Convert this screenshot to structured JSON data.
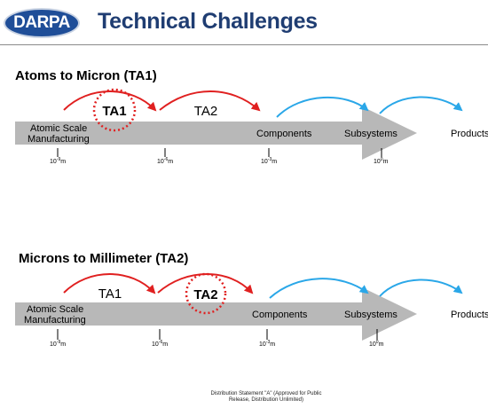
{
  "header": {
    "logo_text": "DARPA",
    "title": "Technical Challenges"
  },
  "colors": {
    "red_arrow": "#e02020",
    "blue_arrow": "#2aa7e8",
    "gray_arrow": "#b8b8b8",
    "title_blue": "#1f3d72"
  },
  "sections": [
    {
      "title": "Atoms to Micron (TA1)",
      "start_label": [
        "Atomic Scale",
        "Manufacturing"
      ],
      "stage_labels": [
        "TA1",
        "TA2"
      ],
      "highlighted": "TA1",
      "milestones": [
        "Components",
        "Subsystems",
        "Products"
      ],
      "ticks": [
        {
          "base": "10",
          "exp": "-9",
          "unit": "m"
        },
        {
          "base": "10",
          "exp": "-6",
          "unit": "m"
        },
        {
          "base": "10",
          "exp": "-3",
          "unit": "m"
        },
        {
          "base": "10",
          "exp": "0",
          "unit": "m"
        }
      ]
    },
    {
      "title": "Microns to Millimeter (TA2)",
      "start_label": [
        "Atomic Scale",
        "Manufacturing"
      ],
      "stage_labels": [
        "TA1",
        "TA2"
      ],
      "highlighted": "TA2",
      "milestones": [
        "Components",
        "Subsystems",
        "Products"
      ],
      "ticks": [
        {
          "base": "10",
          "exp": "-9",
          "unit": "m"
        },
        {
          "base": "10",
          "exp": "-6",
          "unit": "m"
        },
        {
          "base": "10",
          "exp": "-3",
          "unit": "m"
        },
        {
          "base": "10",
          "exp": "0",
          "unit": "m"
        }
      ]
    }
  ],
  "footer": [
    "Distribution Statement \"A\" (Approved for Public",
    "Release, Distribution Unlimited)"
  ]
}
